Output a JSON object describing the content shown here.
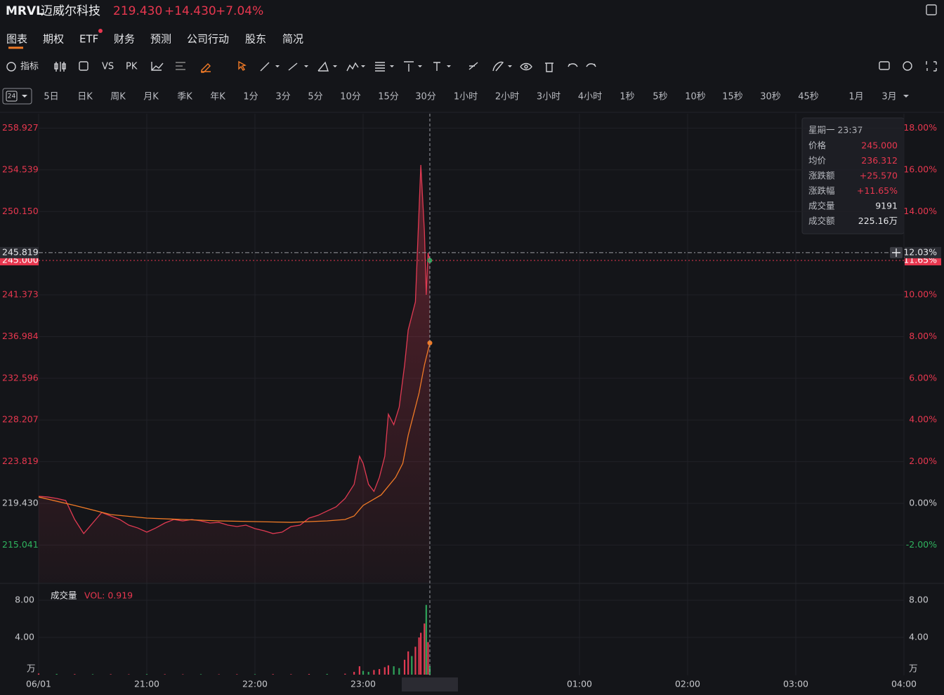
{
  "header": {
    "symbol": "MRVL",
    "name": "迈威尔科技",
    "price": "219.430",
    "change": "+14.430",
    "change_pct": "+7.04%"
  },
  "tabs": [
    "图表",
    "期权",
    "ETF",
    "财务",
    "预测",
    "公司行动",
    "股东",
    "简况"
  ],
  "toolbar": {
    "indicator": "指标",
    "vs": "VS",
    "pk": "PK"
  },
  "periods": {
    "selected": "24",
    "items": [
      "5日",
      "日K",
      "周K",
      "月K",
      "季K",
      "年K",
      "1分",
      "3分",
      "5分",
      "10分",
      "15分",
      "30分",
      "1小时",
      "2小时",
      "3小时",
      "4小时",
      "1秒",
      "5秒",
      "10秒",
      "15秒",
      "30秒",
      "45秒",
      "1月",
      "3月"
    ]
  },
  "tooltip": {
    "time": "星期一 23:37",
    "rows": [
      [
        "价格",
        "245.000"
      ],
      [
        "均价",
        "236.312"
      ],
      [
        "涨跌额",
        "+25.570"
      ],
      [
        "涨跌幅",
        "+11.65%"
      ],
      [
        "成交量",
        "9191"
      ],
      [
        "成交额",
        "225.16万"
      ]
    ]
  },
  "chart_data": [
    {
      "type": "line",
      "xlim": [
        0,
        480
      ],
      "xticks": [
        {
          "value": 0,
          "label": "06/01"
        },
        {
          "value": 60,
          "label": "21:00"
        },
        {
          "value": 120,
          "label": "22:00"
        },
        {
          "value": 180,
          "label": "23:00"
        },
        {
          "value": 300,
          "label": "01:00"
        },
        {
          "value": 360,
          "label": "02:00"
        },
        {
          "value": 420,
          "label": "03:00"
        },
        {
          "value": 480,
          "label": "04:00"
        }
      ],
      "ylim": [
        211.08,
        260.22
      ],
      "yticks": [
        215.041,
        {
          "value": 219.43,
          "label": "219.430"
        },
        223.819,
        228.207,
        232.596,
        236.984,
        241.373,
        {
          "value": 250.15,
          "label": "250.150"
        },
        254.539,
        258.927
      ],
      "y2lim": [
        -3.81,
        18.59
      ],
      "y2ticks": [
        {
          "value": -2,
          "label": "-2.00%"
        },
        {
          "value": 0,
          "label": "0.00%"
        },
        {
          "value": 2,
          "label": "2.00%"
        },
        {
          "value": 4,
          "label": "4.00%"
        },
        {
          "value": 6,
          "label": "6.00%"
        },
        {
          "value": 8,
          "label": "8.00%"
        },
        {
          "value": 10,
          "label": "10.00%"
        },
        {
          "value": 14,
          "label": "14.00%"
        },
        {
          "value": 16,
          "label": "16.00%"
        },
        {
          "value": 18,
          "label": "18.00%"
        }
      ],
      "series": [
        {
          "name": "价格",
          "color": "#e03a52",
          "x": [
            0,
            5,
            10,
            15,
            20,
            25,
            30,
            35,
            40,
            45,
            50,
            55,
            60,
            65,
            70,
            75,
            80,
            85,
            90,
            95,
            100,
            105,
            110,
            115,
            120,
            125,
            130,
            135,
            140,
            145,
            150,
            155,
            160,
            165,
            170,
            175,
            178,
            180,
            183,
            186,
            189,
            192,
            194,
            197,
            200,
            203,
            205,
            207,
            209,
            211,
            212,
            214,
            215,
            216,
            217
          ],
          "values": [
            220.17,
            220.1,
            219.95,
            219.73,
            217.73,
            216.25,
            217.36,
            218.47,
            218.1,
            217.73,
            217.14,
            216.84,
            216.4,
            216.84,
            217.36,
            217.73,
            217.58,
            217.73,
            217.58,
            217.36,
            217.43,
            217.14,
            216.99,
            217.14,
            216.77,
            216.55,
            216.25,
            216.4,
            216.99,
            217.14,
            217.88,
            218.17,
            218.62,
            219.06,
            219.95,
            221.43,
            224.38,
            223.64,
            221.43,
            220.69,
            222.16,
            224.38,
            228.81,
            227.71,
            229.55,
            233.99,
            237.68,
            239.16,
            240.64,
            250.24,
            255.05,
            248.02,
            241.38,
            245.81,
            245.0
          ]
        },
        {
          "name": "均价",
          "color": "#f07a26",
          "x": [
            0,
            20,
            40,
            60,
            80,
            100,
            120,
            140,
            160,
            170,
            175,
            180,
            190,
            198,
            202,
            205,
            208,
            211,
            214,
            217
          ],
          "values": [
            220.1,
            219.21,
            218.25,
            217.88,
            217.73,
            217.58,
            217.51,
            217.43,
            217.58,
            217.73,
            218.1,
            219.21,
            220.32,
            222.16,
            223.64,
            226.6,
            228.81,
            231.03,
            233.99,
            236.312
          ]
        }
      ],
      "crosshair": {
        "x": 217,
        "value": 245.819,
        "label": "245.819",
        "pct": {
          "value": 12.03,
          "label": "12.03%"
        }
      },
      "last_price": {
        "value": 245.0,
        "label": "245.000",
        "pct": {
          "value": 11.65,
          "label": "11.65%"
        }
      },
      "grid": true
    },
    {
      "type": "bar",
      "title": "成交量",
      "indicator": "VOL: 0.919",
      "unit": "万",
      "xlim": [
        0,
        480
      ],
      "ylim": [
        0,
        9.74
      ],
      "yticks": [
        {
          "value": 4,
          "label": "4.00"
        },
        {
          "value": 8,
          "label": "8.00"
        }
      ],
      "x": [
        0,
        10,
        20,
        30,
        40,
        50,
        60,
        70,
        80,
        90,
        100,
        110,
        120,
        130,
        140,
        150,
        160,
        170,
        175,
        178,
        180,
        183,
        186,
        189,
        192,
        194,
        197,
        200,
        203,
        205,
        207,
        209,
        211,
        212,
        214,
        215,
        216,
        217
      ],
      "values": [
        0.12,
        0.08,
        0.06,
        0.05,
        0.05,
        0.04,
        0.06,
        0.05,
        0.04,
        0.05,
        0.04,
        0.05,
        0.05,
        0.06,
        0.05,
        0.07,
        0.08,
        0.1,
        0.3,
        0.9,
        0.4,
        0.3,
        0.5,
        0.6,
        0.8,
        1.0,
        0.9,
        0.7,
        1.6,
        2.5,
        2.0,
        3.0,
        4.0,
        4.5,
        5.5,
        7.5,
        3.5,
        0.919
      ],
      "colors": [
        "#e03a52",
        "#2fa35a",
        "#e03a52",
        "#2fa35a",
        "#e03a52",
        "#e03a52",
        "#2fa35a",
        "#e03a52",
        "#e03a52",
        "#2fa35a",
        "#e03a52",
        "#e03a52",
        "#2fa35a",
        "#e03a52",
        "#e03a52",
        "#e03a52",
        "#2fa35a",
        "#e03a52",
        "#e03a52",
        "#e03a52",
        "#2fa35a",
        "#2fa35a",
        "#e03a52",
        "#e03a52",
        "#e03a52",
        "#e03a52",
        "#2fa35a",
        "#2fa35a",
        "#e03a52",
        "#e03a52",
        "#2fa35a",
        "#e03a52",
        "#e03a52",
        "#e03a52",
        "#e03a52",
        "#2fa35a",
        "#e03a52",
        "#2fa35a"
      ]
    }
  ]
}
